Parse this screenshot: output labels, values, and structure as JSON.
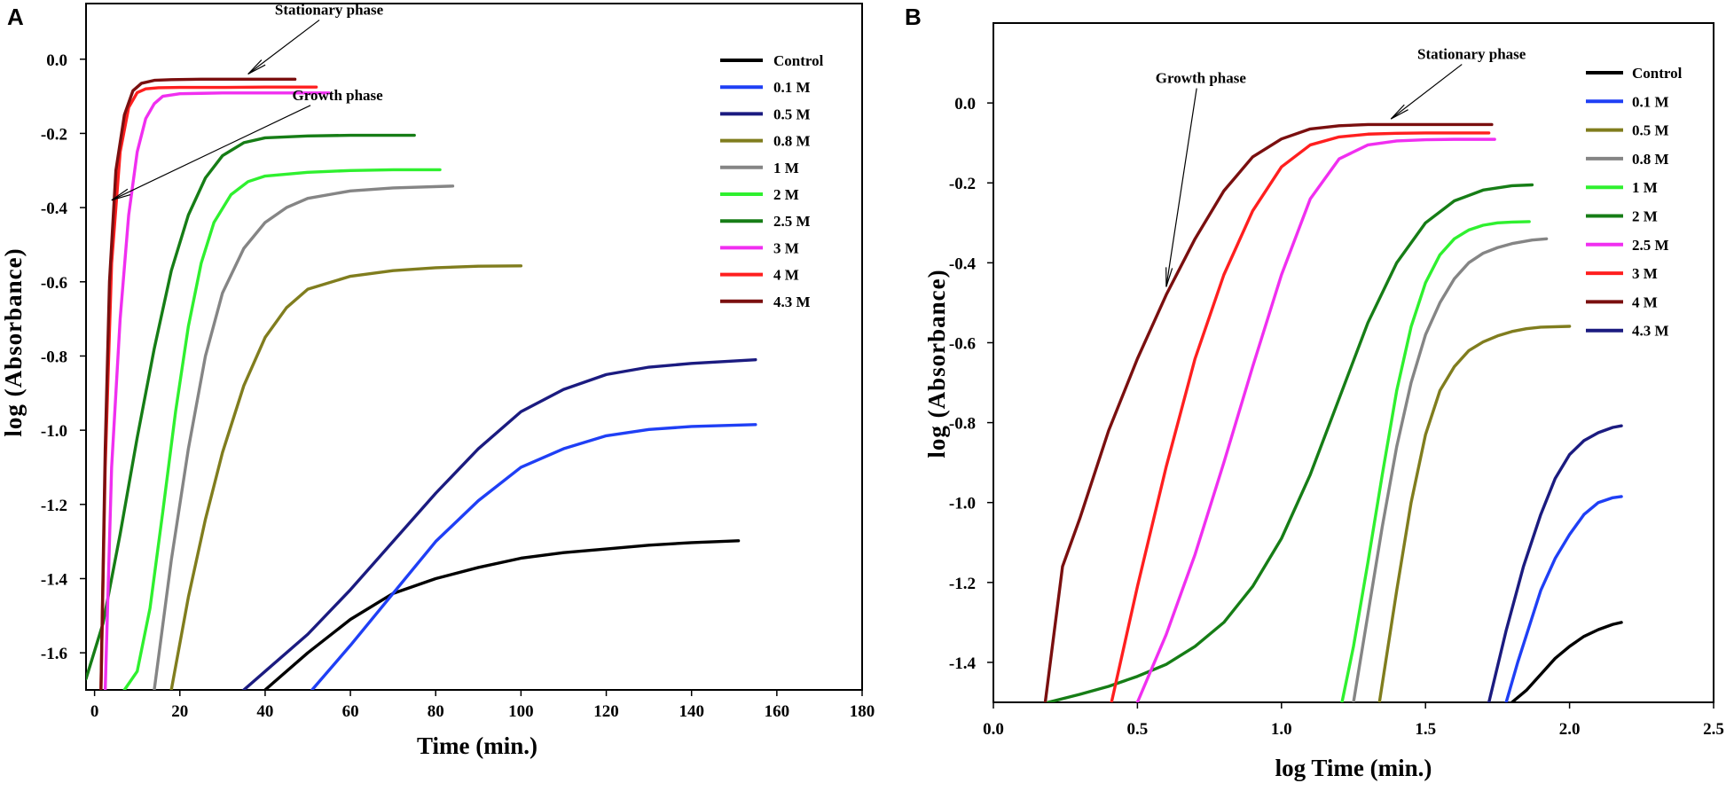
{
  "chart_data": [
    {
      "type": "line",
      "panel_label": "A",
      "xlabel": "Time (min.)",
      "ylabel": "log (Absorbance)",
      "xlim": [
        -2,
        180
      ],
      "ylim": [
        -1.7,
        0.15
      ],
      "x_ticks": [
        0,
        20,
        40,
        60,
        80,
        100,
        120,
        140,
        160,
        180
      ],
      "y_ticks": [
        -1.6,
        -1.4,
        -1.2,
        -1.0,
        -0.8,
        -0.6,
        -0.4,
        -0.2,
        0.0
      ],
      "x_tick_labels": [
        "0",
        "20",
        "40",
        "60",
        "80",
        "100",
        "120",
        "140",
        "160",
        "180"
      ],
      "y_tick_labels": [
        "-1.6",
        "-1.4",
        "-1.2",
        "-1.0",
        "-0.8",
        "-0.6",
        "-0.4",
        "-0.2",
        "0.0"
      ],
      "legend_position": "top-right",
      "annotations": [
        {
          "text": "Stationary phase",
          "label_at": [
            55,
            0.12
          ],
          "arrow_to": [
            36,
            -0.04
          ]
        },
        {
          "text": "Growth phase",
          "label_at": [
            57,
            -0.11
          ],
          "arrow_to": [
            4,
            -0.38
          ]
        }
      ],
      "series": [
        {
          "name": "Control",
          "color": "#000000",
          "x": [
            40,
            50,
            60,
            70,
            80,
            90,
            100,
            110,
            120,
            130,
            140,
            151
          ],
          "y": [
            -1.7,
            -1.6,
            -1.51,
            -1.44,
            -1.4,
            -1.37,
            -1.345,
            -1.33,
            -1.32,
            -1.31,
            -1.303,
            -1.298
          ]
        },
        {
          "name": "0.1 M",
          "color": "#1f3ff5",
          "x": [
            51,
            60,
            70,
            80,
            90,
            100,
            110,
            120,
            130,
            140,
            155
          ],
          "y": [
            -1.7,
            -1.58,
            -1.44,
            -1.3,
            -1.19,
            -1.1,
            -1.05,
            -1.015,
            -0.998,
            -0.99,
            -0.985
          ]
        },
        {
          "name": "0.5 M",
          "color": "#1b1b80",
          "x": [
            35,
            40,
            50,
            60,
            70,
            80,
            90,
            100,
            110,
            120,
            130,
            140,
            155
          ],
          "y": [
            -1.7,
            -1.65,
            -1.55,
            -1.43,
            -1.3,
            -1.17,
            -1.05,
            -0.95,
            -0.89,
            -0.85,
            -0.83,
            -0.82,
            -0.81
          ]
        },
        {
          "name": "0.8 M",
          "color": "#807d1e",
          "x": [
            18,
            22,
            26,
            30,
            35,
            40,
            45,
            50,
            60,
            70,
            80,
            90,
            100
          ],
          "y": [
            -1.7,
            -1.45,
            -1.24,
            -1.06,
            -0.88,
            -0.75,
            -0.67,
            -0.62,
            -0.585,
            -0.57,
            -0.562,
            -0.558,
            -0.557
          ]
        },
        {
          "name": "1 M",
          "color": "#858585",
          "x": [
            14,
            18,
            22,
            26,
            30,
            35,
            40,
            45,
            50,
            60,
            70,
            84
          ],
          "y": [
            -1.7,
            -1.35,
            -1.05,
            -0.8,
            -0.63,
            -0.51,
            -0.44,
            -0.4,
            -0.375,
            -0.355,
            -0.347,
            -0.342
          ]
        },
        {
          "name": "2 M",
          "color": "#2ff02f",
          "x": [
            7,
            10,
            13,
            16,
            19,
            22,
            25,
            28,
            32,
            36,
            40,
            50,
            60,
            70,
            81
          ],
          "y": [
            -1.7,
            -1.65,
            -1.48,
            -1.22,
            -0.95,
            -0.72,
            -0.55,
            -0.44,
            -0.365,
            -0.33,
            -0.315,
            -0.305,
            -0.3,
            -0.298,
            -0.298
          ]
        },
        {
          "name": "2.5 M",
          "color": "#167d16",
          "x": [
            -2,
            2,
            6,
            10,
            14,
            18,
            22,
            26,
            30,
            35,
            40,
            50,
            60,
            75
          ],
          "y": [
            -1.67,
            -1.52,
            -1.28,
            -1.02,
            -0.78,
            -0.57,
            -0.42,
            -0.32,
            -0.26,
            -0.225,
            -0.212,
            -0.207,
            -0.205,
            -0.205
          ]
        },
        {
          "name": "3 M",
          "color": "#f02ff0",
          "x": [
            2.5,
            4,
            6,
            8,
            10,
            12,
            14,
            16,
            20,
            25,
            30,
            40,
            50,
            55
          ],
          "y": [
            -1.7,
            -1.1,
            -0.7,
            -0.42,
            -0.25,
            -0.16,
            -0.12,
            -0.1,
            -0.093,
            -0.092,
            -0.091,
            -0.091,
            -0.091,
            -0.091
          ]
        },
        {
          "name": "4 M",
          "color": "#ff1f1f",
          "x": [
            1.5,
            2.5,
            4,
            6,
            8,
            10,
            12,
            15,
            20,
            30,
            40,
            52
          ],
          "y": [
            -1.7,
            -1.1,
            -0.55,
            -0.25,
            -0.13,
            -0.09,
            -0.08,
            -0.077,
            -0.076,
            -0.076,
            -0.075,
            -0.075
          ]
        },
        {
          "name": "4.3 M",
          "color": "#7a0f0f",
          "x": [
            1.5,
            2.5,
            3.5,
            5,
            7,
            9,
            11,
            14,
            18,
            25,
            35,
            47
          ],
          "y": [
            -1.7,
            -1.05,
            -0.6,
            -0.3,
            -0.15,
            -0.085,
            -0.065,
            -0.057,
            -0.055,
            -0.054,
            -0.054,
            -0.054
          ]
        }
      ]
    },
    {
      "type": "line",
      "panel_label": "B",
      "xlabel": "log Time (min.)",
      "ylabel": "log (Absorbance)",
      "xlim": [
        0.0,
        2.5
      ],
      "ylim": [
        -1.5,
        0.2
      ],
      "x_ticks": [
        0.0,
        0.5,
        1.0,
        1.5,
        2.0,
        2.5
      ],
      "y_ticks": [
        -1.4,
        -1.2,
        -1.0,
        -0.8,
        -0.6,
        -0.4,
        -0.2,
        0.0
      ],
      "x_tick_labels": [
        "0.0",
        "0.5",
        "1.0",
        "1.5",
        "2.0",
        "2.5"
      ],
      "y_tick_labels": [
        "-1.4",
        "-1.2",
        "-1.0",
        "-0.8",
        "-0.6",
        "-0.4",
        "-0.2",
        "0.0"
      ],
      "legend_position": "top-right",
      "annotations": [
        {
          "text": "Growth phase",
          "label_at": [
            0.72,
            0.05
          ],
          "arrow_to": [
            0.6,
            -0.46
          ]
        },
        {
          "text": "Stationary phase",
          "label_at": [
            1.66,
            0.11
          ],
          "arrow_to": [
            1.38,
            -0.04
          ]
        }
      ],
      "series": [
        {
          "name": "Control",
          "color": "#000000",
          "x": [
            1.8,
            1.85,
            1.9,
            1.95,
            2.0,
            2.05,
            2.1,
            2.15,
            2.18
          ],
          "y": [
            -1.5,
            -1.47,
            -1.43,
            -1.39,
            -1.36,
            -1.335,
            -1.318,
            -1.305,
            -1.3
          ]
        },
        {
          "name": "0.1 M",
          "color": "#1f3ff5",
          "x": [
            1.78,
            1.82,
            1.86,
            1.9,
            1.95,
            2.0,
            2.05,
            2.1,
            2.15,
            2.18
          ],
          "y": [
            -1.5,
            -1.4,
            -1.31,
            -1.22,
            -1.14,
            -1.08,
            -1.03,
            -1.0,
            -0.988,
            -0.985
          ]
        },
        {
          "name": "0.5 M",
          "color": "#807d1e",
          "x": [
            1.34,
            1.4,
            1.45,
            1.5,
            1.55,
            1.6,
            1.65,
            1.7,
            1.75,
            1.8,
            1.85,
            1.9,
            2.0
          ],
          "y": [
            -1.5,
            -1.22,
            -1.0,
            -0.83,
            -0.72,
            -0.66,
            -0.62,
            -0.598,
            -0.583,
            -0.572,
            -0.565,
            -0.561,
            -0.559
          ]
        },
        {
          "name": "0.8 M",
          "color": "#858585",
          "x": [
            1.25,
            1.3,
            1.35,
            1.4,
            1.45,
            1.5,
            1.55,
            1.6,
            1.65,
            1.7,
            1.75,
            1.8,
            1.87,
            1.92
          ],
          "y": [
            -1.5,
            -1.28,
            -1.06,
            -0.86,
            -0.7,
            -0.58,
            -0.5,
            -0.44,
            -0.4,
            -0.376,
            -0.362,
            -0.352,
            -0.343,
            -0.34
          ]
        },
        {
          "name": "1 M",
          "color": "#2ff02f",
          "x": [
            1.21,
            1.25,
            1.3,
            1.35,
            1.4,
            1.45,
            1.5,
            1.55,
            1.6,
            1.65,
            1.7,
            1.75,
            1.8,
            1.86
          ],
          "y": [
            -1.5,
            -1.36,
            -1.15,
            -0.93,
            -0.72,
            -0.56,
            -0.45,
            -0.38,
            -0.34,
            -0.318,
            -0.306,
            -0.3,
            -0.298,
            -0.297
          ]
        },
        {
          "name": "2 M",
          "color": "#167d16",
          "x": [
            0.19,
            0.3,
            0.4,
            0.5,
            0.6,
            0.7,
            0.8,
            0.9,
            1.0,
            1.1,
            1.2,
            1.3,
            1.4,
            1.5,
            1.6,
            1.7,
            1.8,
            1.87
          ],
          "y": [
            -1.5,
            -1.48,
            -1.46,
            -1.435,
            -1.405,
            -1.36,
            -1.3,
            -1.21,
            -1.09,
            -0.93,
            -0.74,
            -0.55,
            -0.4,
            -0.3,
            -0.245,
            -0.218,
            -0.207,
            -0.205
          ]
        },
        {
          "name": "2.5 M",
          "color": "#f02ff0",
          "x": [
            0.5,
            0.6,
            0.7,
            0.8,
            0.9,
            1.0,
            1.1,
            1.2,
            1.3,
            1.4,
            1.5,
            1.6,
            1.74
          ],
          "y": [
            -1.5,
            -1.33,
            -1.13,
            -0.9,
            -0.66,
            -0.43,
            -0.24,
            -0.14,
            -0.105,
            -0.095,
            -0.092,
            -0.091,
            -0.091
          ]
        },
        {
          "name": "3 M",
          "color": "#ff1f1f",
          "x": [
            0.41,
            0.5,
            0.6,
            0.7,
            0.8,
            0.9,
            1.0,
            1.1,
            1.2,
            1.3,
            1.4,
            1.5,
            1.72
          ],
          "y": [
            -1.5,
            -1.21,
            -0.91,
            -0.64,
            -0.43,
            -0.27,
            -0.16,
            -0.105,
            -0.085,
            -0.078,
            -0.076,
            -0.075,
            -0.075
          ]
        },
        {
          "name": "4 M",
          "color": "#7a0f0f",
          "x": [
            0.18,
            0.24,
            0.3,
            0.4,
            0.5,
            0.6,
            0.7,
            0.8,
            0.9,
            1.0,
            1.1,
            1.2,
            1.3,
            1.4,
            1.5,
            1.73
          ],
          "y": [
            -1.5,
            -1.16,
            -1.04,
            -0.82,
            -0.64,
            -0.48,
            -0.34,
            -0.22,
            -0.135,
            -0.09,
            -0.065,
            -0.057,
            -0.054,
            -0.054,
            -0.054,
            -0.054
          ]
        },
        {
          "name": "4.3 M",
          "color": "#1b1b80",
          "x": [
            1.72,
            1.78,
            1.84,
            1.9,
            1.95,
            2.0,
            2.05,
            2.1,
            2.15,
            2.18
          ],
          "y": [
            -1.5,
            -1.32,
            -1.16,
            -1.03,
            -0.94,
            -0.88,
            -0.845,
            -0.825,
            -0.812,
            -0.808
          ]
        }
      ]
    }
  ]
}
